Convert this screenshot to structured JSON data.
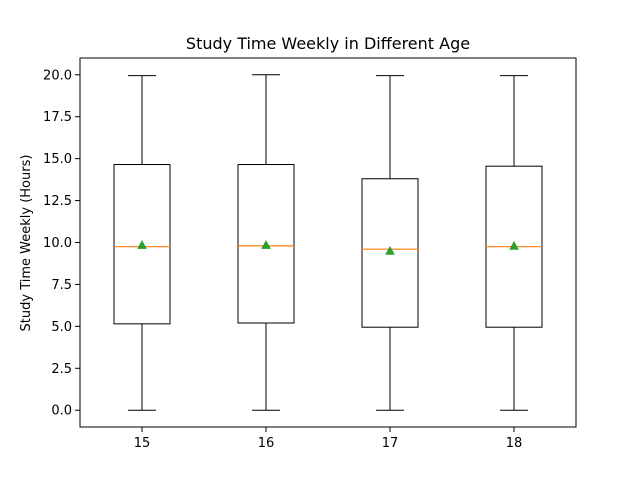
{
  "chart_data": {
    "type": "box",
    "title": "Study Time Weekly in Different Age",
    "xlabel": "",
    "ylabel": "Study Time Weekly (Hours)",
    "categories": [
      "15",
      "16",
      "17",
      "18"
    ],
    "ylim": [
      -1.0,
      21.0
    ],
    "y_ticks": [
      0.0,
      2.5,
      5.0,
      7.5,
      10.0,
      12.5,
      15.0,
      17.5,
      20.0
    ],
    "y_tick_labels": [
      "0.0",
      "2.5",
      "5.0",
      "7.5",
      "10.0",
      "12.5",
      "15.0",
      "17.5",
      "20.0"
    ],
    "boxes": [
      {
        "category": "15",
        "whisker_low": 0.0,
        "q1": 5.15,
        "median": 9.75,
        "q3": 14.65,
        "whisker_high": 19.95,
        "mean": 9.85
      },
      {
        "category": "16",
        "whisker_low": 0.0,
        "q1": 5.2,
        "median": 9.8,
        "q3": 14.65,
        "whisker_high": 20.0,
        "mean": 9.85
      },
      {
        "category": "17",
        "whisker_low": 0.0,
        "q1": 4.95,
        "median": 9.6,
        "q3": 13.8,
        "whisker_high": 19.95,
        "mean": 9.5
      },
      {
        "category": "18",
        "whisker_low": 0.0,
        "q1": 4.95,
        "median": 9.75,
        "q3": 14.55,
        "whisker_high": 19.95,
        "mean": 9.8
      }
    ],
    "grid": false,
    "legend": "none",
    "colors": {
      "box": "#000000",
      "median": "#ff7f0e",
      "mean": "#2ca02c"
    }
  }
}
